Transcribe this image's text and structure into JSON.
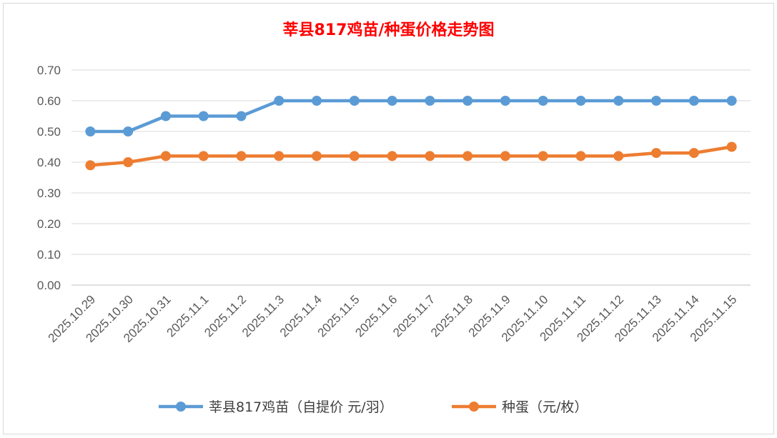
{
  "chart_data": {
    "type": "line",
    "title": "莘县817鸡苗/种蛋价格走势图",
    "xlabel": "",
    "ylabel": "",
    "ylim": [
      0,
      0.7
    ],
    "yticks": [
      "0.00",
      "0.10",
      "0.20",
      "0.30",
      "0.40",
      "0.50",
      "0.60",
      "0.70"
    ],
    "grid": true,
    "legend_position": "bottom",
    "categories": [
      "2025.10.29",
      "2025.10.30",
      "2025.10.31",
      "2025.11.1",
      "2025.11.2",
      "2025.11.3",
      "2025.11.4",
      "2025.11.5",
      "2025.11.6",
      "2025.11.7",
      "2025.11.8",
      "2025.11.9",
      "2025.11.10",
      "2025.11.11",
      "2025.11.12",
      "2025.11.13",
      "2025.11.14",
      "2025.11.15"
    ],
    "series": [
      {
        "name": "莘县817鸡苗（自提价 元/羽）",
        "color": "#5b9bd5",
        "values": [
          0.5,
          0.5,
          0.55,
          0.55,
          0.55,
          0.6,
          0.6,
          0.6,
          0.6,
          0.6,
          0.6,
          0.6,
          0.6,
          0.6,
          0.6,
          0.6,
          0.6,
          0.6
        ]
      },
      {
        "name": "种蛋（元/枚）",
        "color": "#ed7d31",
        "values": [
          0.39,
          0.4,
          0.42,
          0.42,
          0.42,
          0.42,
          0.42,
          0.42,
          0.42,
          0.42,
          0.42,
          0.42,
          0.42,
          0.42,
          0.42,
          0.43,
          0.43,
          0.45
        ]
      }
    ]
  }
}
